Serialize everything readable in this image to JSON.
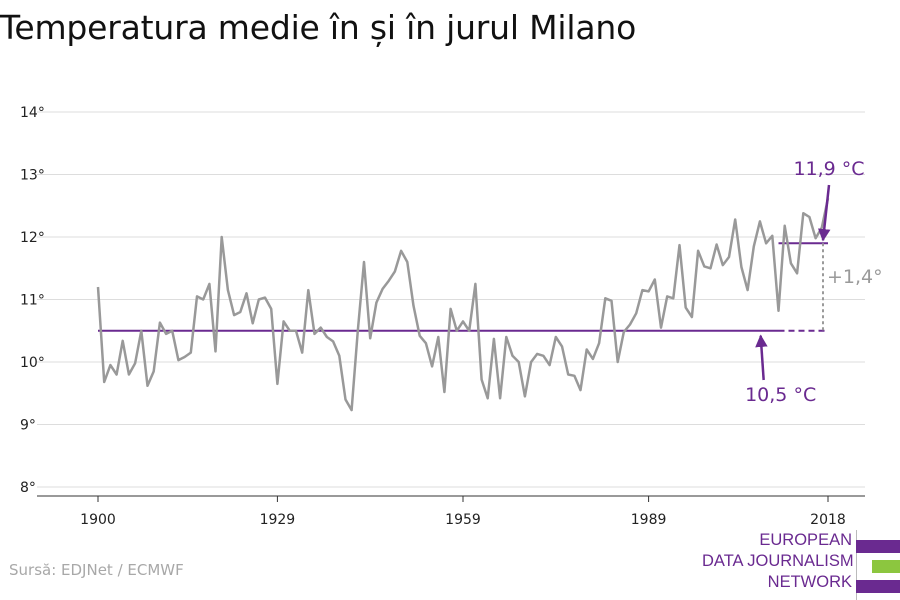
{
  "title": "Temperatura medie în și în jurul Milano",
  "source": "Sursă: EDJNet / ECMWF",
  "logo": {
    "lines": [
      "EUROPEAN",
      "DATA JOURNALISM",
      "NETWORK"
    ],
    "colors": [
      "#6a2a90",
      "#8cc63f",
      "#6a2a90"
    ]
  },
  "colors": {
    "series": "#999999",
    "reference": "#6a2a90",
    "difference": "#9a9a9a",
    "grid": "#dddddd",
    "axis": "#333333"
  },
  "chart_data": {
    "type": "line",
    "title": "Temperatura medie în și în jurul Milano",
    "xlabel": "",
    "ylabel": "",
    "xlim": [
      1900,
      2018
    ],
    "ylim": [
      8,
      14
    ],
    "xticks": [
      1900,
      1929,
      1959,
      1989,
      2018
    ],
    "xtick_labels": [
      "1900",
      "1929",
      "1959",
      "1989",
      "2018"
    ],
    "yticks": [
      8,
      9,
      10,
      11,
      12,
      13,
      14
    ],
    "ytick_labels": [
      "8°",
      "9°",
      "10°",
      "11°",
      "12°",
      "13°",
      "14°"
    ],
    "grid": true,
    "series": [
      {
        "x": [
          1900,
          1901,
          1902,
          1903,
          1904,
          1905,
          1906,
          1907,
          1908,
          1909,
          1910,
          1911,
          1912,
          1913,
          1914,
          1915,
          1916,
          1917,
          1918,
          1919,
          1920,
          1921,
          1922,
          1923,
          1924,
          1925,
          1926,
          1927,
          1928,
          1929,
          1930,
          1931,
          1932,
          1933,
          1934,
          1935,
          1936,
          1937,
          1938,
          1939,
          1940,
          1941,
          1942,
          1943,
          1944,
          1945,
          1946,
          1947,
          1948,
          1949,
          1950,
          1951,
          1952,
          1953,
          1954,
          1955,
          1956,
          1957,
          1958,
          1959,
          1960,
          1961,
          1962,
          1963,
          1964,
          1965,
          1966,
          1967,
          1968,
          1969,
          1970,
          1971,
          1972,
          1973,
          1974,
          1975,
          1976,
          1977,
          1978,
          1979,
          1980,
          1981,
          1982,
          1983,
          1984,
          1985,
          1986,
          1987,
          1988,
          1989,
          1990,
          1991,
          1992,
          1993,
          1994,
          1995,
          1996,
          1997,
          1998,
          1999,
          2000,
          2001,
          2002,
          2003,
          2004,
          2005,
          2006,
          2007,
          2008,
          2009,
          2010,
          2011,
          2012,
          2013,
          2014,
          2015,
          2016,
          2017,
          2018
        ],
        "values": [
          11.2,
          9.68,
          9.95,
          9.8,
          10.34,
          9.8,
          9.98,
          10.5,
          9.62,
          9.85,
          10.63,
          10.45,
          10.5,
          10.03,
          10.08,
          10.15,
          11.05,
          11.0,
          11.25,
          10.17,
          12.0,
          11.15,
          10.75,
          10.8,
          11.1,
          10.62,
          11.0,
          11.03,
          10.85,
          9.65,
          10.65,
          10.5,
          10.5,
          10.15,
          11.15,
          10.45,
          10.55,
          10.4,
          10.33,
          10.1,
          9.4,
          9.23,
          10.5,
          11.6,
          10.38,
          10.95,
          11.17,
          11.3,
          11.45,
          11.78,
          11.6,
          10.9,
          10.42,
          10.3,
          9.93,
          10.4,
          9.52,
          10.85,
          10.5,
          10.65,
          10.5,
          11.25,
          9.72,
          9.42,
          10.37,
          9.42,
          10.4,
          10.1,
          10.0,
          9.45,
          10.0,
          10.13,
          10.1,
          9.95,
          10.4,
          10.25,
          9.8,
          9.78,
          9.55,
          10.2,
          10.05,
          10.3,
          11.02,
          10.98,
          10.0,
          10.48,
          10.6,
          10.78,
          11.15,
          11.13,
          11.32,
          10.55,
          11.05,
          11.02,
          11.87,
          10.87,
          10.72,
          11.78,
          11.53,
          11.5,
          11.88,
          11.55,
          11.68,
          12.28,
          11.52,
          11.15,
          11.85,
          12.25,
          11.9,
          12.02,
          10.82,
          12.18,
          11.58,
          11.42,
          12.38,
          12.32,
          11.98,
          12.15,
          12.62
        ]
      }
    ],
    "reference_lines": [
      {
        "value": 10.5,
        "label": "10,5 °C",
        "from": 1900,
        "solid_to": 2010,
        "to": 2018
      },
      {
        "value": 11.9,
        "label": "11,9 °C",
        "from": 2010,
        "to": 2018
      }
    ],
    "difference_label": "+1,4°"
  }
}
